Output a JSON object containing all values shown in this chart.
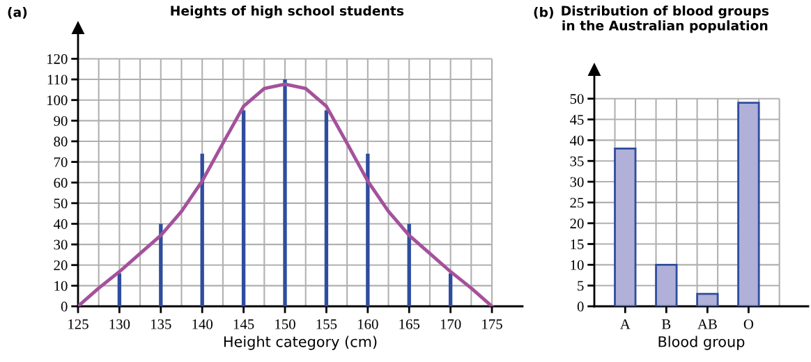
{
  "chart_data": [
    {
      "type": "bar",
      "title": "Heights of high school students",
      "xlabel": "Height category (cm)",
      "annotations": [
        "(a)"
      ],
      "x": [
        130,
        135,
        140,
        145,
        150,
        155,
        160,
        165,
        170
      ],
      "series": [
        {
          "type": "bar",
          "color": "#2e4d9e",
          "values": [
            16,
            40,
            74,
            95,
            110,
            95,
            74,
            40,
            16
          ]
        },
        {
          "type": "line",
          "color": "#a4519c",
          "x": [
            125,
            127.5,
            130,
            132.5,
            135,
            137.5,
            140,
            142.5,
            145,
            147.5,
            150,
            152.5,
            155,
            157.5,
            160,
            162.5,
            165,
            167.5,
            170,
            172.5,
            175
          ],
          "values": [
            0,
            8.8,
            16.8,
            25.6,
            34.4,
            46,
            60.7,
            79,
            97,
            105.6,
            107.7,
            105.6,
            97,
            79,
            60.7,
            46,
            34.4,
            25.6,
            16.8,
            8.8,
            0
          ]
        }
      ],
      "xlim": [
        125,
        178.7
      ],
      "xticks": [
        125,
        130,
        135,
        140,
        145,
        150,
        155,
        160,
        165,
        170,
        175
      ],
      "ylim": [
        0,
        135
      ],
      "yticks": [
        0,
        10,
        20,
        30,
        40,
        50,
        60,
        70,
        80,
        90,
        100,
        110,
        120
      ],
      "grid": true
    },
    {
      "type": "bar",
      "title": "Distribution of blood groups\nin the Australian population",
      "xlabel": "Blood group",
      "annotations": [
        "(b)"
      ],
      "categories": [
        "A",
        "B",
        "AB",
        "O"
      ],
      "values": [
        38,
        10,
        3,
        49
      ],
      "color": "#b0b0d8",
      "ylim": [
        0,
        57
      ],
      "yticks": [
        0,
        5,
        10,
        15,
        20,
        25,
        30,
        35,
        40,
        45,
        50
      ],
      "grid": true
    }
  ]
}
